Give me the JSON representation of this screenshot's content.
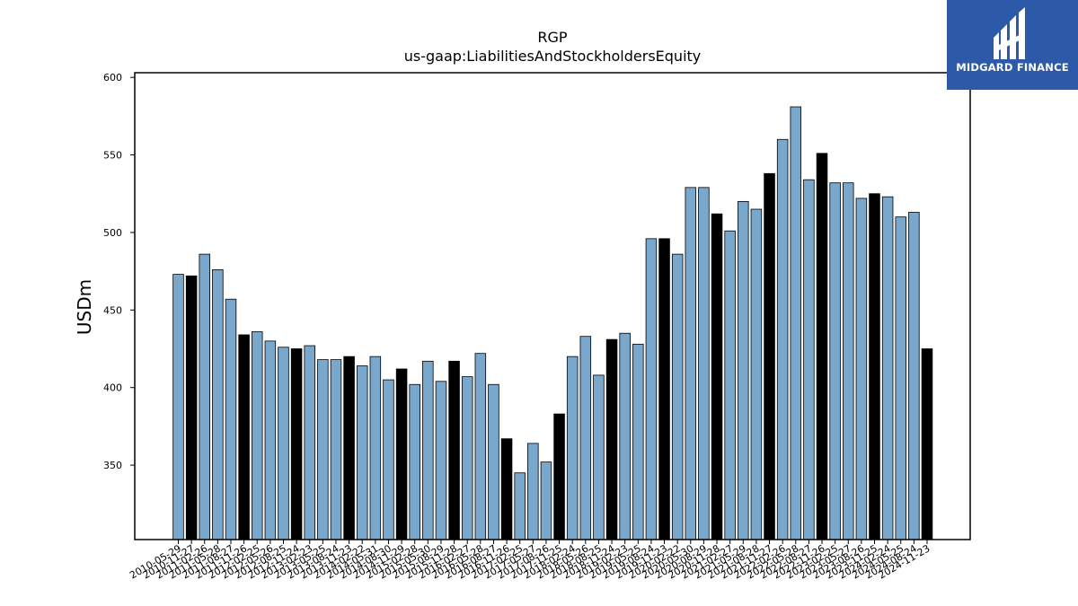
{
  "chart_data": {
    "type": "bar",
    "title": "RGP",
    "subtitle": "us-gaap:LiabilitiesAndStockholdersEquity",
    "ylabel": "USDm",
    "xlabel": "",
    "ylim": [
      302,
      603
    ],
    "yticks": [
      350,
      400,
      450,
      500,
      550,
      600
    ],
    "colors": {
      "normal": "#7aa7cc",
      "highlight": "#000000",
      "edge": "#000000"
    },
    "categories": [
      "2010-05-29",
      "2010-11-27",
      "2011-02-26",
      "2011-05-28",
      "2011-08-27",
      "2011-11-26",
      "2012-02-25",
      "2012-05-26",
      "2012-08-25",
      "2012-11-24",
      "2013-02-23",
      "2013-05-25",
      "2013-08-24",
      "2013-11-23",
      "2014-02-22",
      "2014-05-31",
      "2014-08-30",
      "2014-11-29",
      "2015-02-28",
      "2015-05-30",
      "2015-08-29",
      "2015-11-28",
      "2016-02-27",
      "2016-05-28",
      "2016-08-27",
      "2016-11-26",
      "2017-02-25",
      "2017-05-27",
      "2017-08-26",
      "2017-11-25",
      "2018-02-24",
      "2018-05-26",
      "2018-08-25",
      "2018-11-24",
      "2019-02-23",
      "2019-05-25",
      "2019-08-24",
      "2019-11-23",
      "2020-02-22",
      "2020-05-30",
      "2020-08-29",
      "2020-11-28",
      "2021-02-27",
      "2021-05-29",
      "2021-08-28",
      "2021-11-27",
      "2022-02-26",
      "2022-05-28",
      "2022-08-27",
      "2022-11-26",
      "2023-02-25",
      "2023-05-27",
      "2023-08-26",
      "2023-11-25",
      "2024-02-24",
      "2024-05-25",
      "2024-08-24",
      "2024-11-23"
    ],
    "values": [
      473,
      472,
      486,
      476,
      457,
      434,
      436,
      430,
      426,
      425,
      427,
      418,
      418,
      420,
      414,
      420,
      405,
      412,
      402,
      417,
      404,
      417,
      407,
      422,
      402,
      367,
      345,
      364,
      352,
      383,
      420,
      433,
      408,
      431,
      435,
      428,
      496,
      496,
      486,
      529,
      529,
      512,
      501,
      520,
      515,
      538,
      560,
      581,
      534,
      551,
      532,
      532,
      522,
      525,
      523,
      510,
      513,
      425
    ],
    "highlighted": [
      1,
      5,
      9,
      13,
      17,
      21,
      25,
      29,
      33,
      37,
      41,
      45,
      49,
      53,
      57
    ]
  },
  "logo": {
    "text": "MIDGARD FINANCE"
  }
}
